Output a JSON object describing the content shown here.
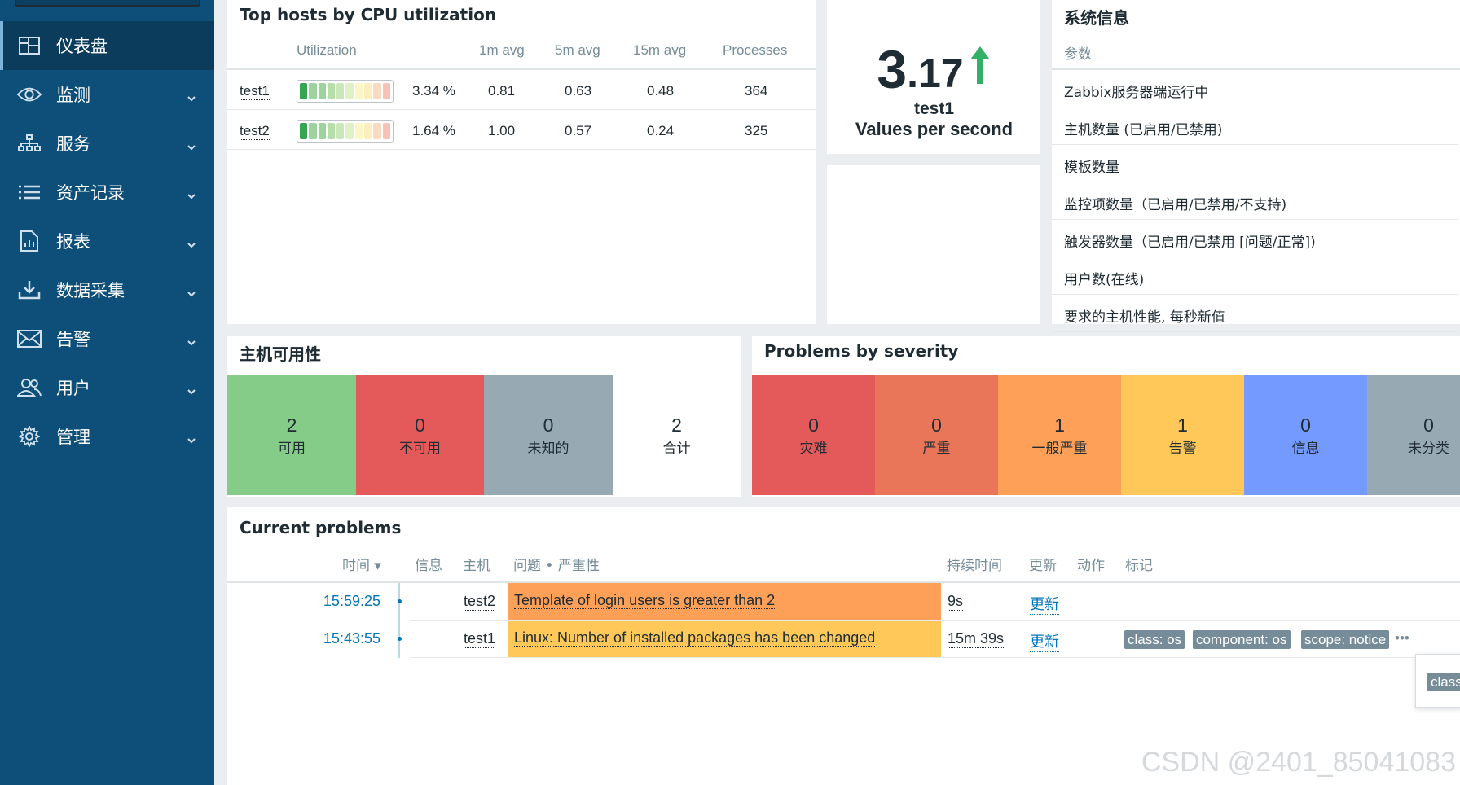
{
  "sidebar": {
    "items": [
      {
        "label": "仪表盘",
        "icon": "dashboard-icon",
        "active": true
      },
      {
        "label": "监测",
        "icon": "eye-icon"
      },
      {
        "label": "服务",
        "icon": "sitemap-icon"
      },
      {
        "label": "资产记录",
        "icon": "list-icon"
      },
      {
        "label": "报表",
        "icon": "report-icon"
      },
      {
        "label": "数据采集",
        "icon": "download-icon"
      },
      {
        "label": "告警",
        "icon": "mail-icon"
      },
      {
        "label": "用户",
        "icon": "users-icon"
      },
      {
        "label": "管理",
        "icon": "gear-icon"
      }
    ]
  },
  "cpu_widget": {
    "title": "Top hosts by CPU utilization",
    "columns": [
      "Utilization",
      "1m avg",
      "5m avg",
      "15m avg",
      "Processes"
    ],
    "rows": [
      {
        "host": "test1",
        "utilization": "3.34 %",
        "avg1": "0.81",
        "avg5": "0.63",
        "avg15": "0.48",
        "processes": "364",
        "fill": 0.0334
      },
      {
        "host": "test2",
        "utilization": "1.64 %",
        "avg1": "1.00",
        "avg5": "0.57",
        "avg15": "0.24",
        "processes": "325",
        "fill": 0.0164
      }
    ]
  },
  "value_widget": {
    "value_int": "3",
    "value_dec": ".17",
    "host": "test1",
    "label": "Values per second",
    "trend": "up-arrow-icon"
  },
  "sysinfo": {
    "title": "系统信息",
    "column": "参数",
    "rows": [
      "Zabbix服务器端运行中",
      "主机数量 (已启用/已禁用)",
      "模板数量",
      "监控项数量（已启用/已禁用/不支持)",
      "触发器数量（已启用/已禁用 [问题/正常])",
      "用户数(在线)",
      "要求的主机性能, 每秒新值"
    ]
  },
  "availability": {
    "title": "主机可用性",
    "blocks": [
      {
        "value": "2",
        "label": "可用",
        "color": "#86cc89"
      },
      {
        "value": "0",
        "label": "不可用",
        "color": "#e45959"
      },
      {
        "value": "0",
        "label": "未知的",
        "color": "#97aab3"
      },
      {
        "value": "2",
        "label": "合计",
        "color": "#ffffff"
      }
    ]
  },
  "severity": {
    "title": "Problems by severity",
    "blocks": [
      {
        "value": "0",
        "label": "灾难",
        "color": "#e45959"
      },
      {
        "value": "0",
        "label": "严重",
        "color": "#e97659"
      },
      {
        "value": "1",
        "label": "一般严重",
        "color": "#ffa059"
      },
      {
        "value": "1",
        "label": "告警",
        "color": "#ffc859"
      },
      {
        "value": "0",
        "label": "信息",
        "color": "#7499ff"
      },
      {
        "value": "0",
        "label": "未分类",
        "color": "#97aab3"
      }
    ]
  },
  "problems": {
    "title": "Current problems",
    "columns": {
      "time": "时间 ▾",
      "info": "信息",
      "host": "主机",
      "problem": "问题 • 严重性",
      "duration": "持续时间",
      "update": "更新",
      "actions": "动作",
      "tags": "标记"
    },
    "rows": [
      {
        "time": "15:59:25",
        "host": "test2",
        "problem": "Template of login users is greater than 2",
        "duration": "9s",
        "update": "更新",
        "color": "#ffa059",
        "tags": []
      },
      {
        "time": "15:43:55",
        "host": "test1",
        "problem": "Linux: Number of installed packages has been changed",
        "duration": "15m 39s",
        "update": "更新",
        "color": "#ffc859",
        "tags": [
          "class: os",
          "component: os",
          "scope: notice"
        ],
        "more": "•••"
      }
    ],
    "popup_tag": "class"
  },
  "watermark": "CSDN @2401_85041083"
}
